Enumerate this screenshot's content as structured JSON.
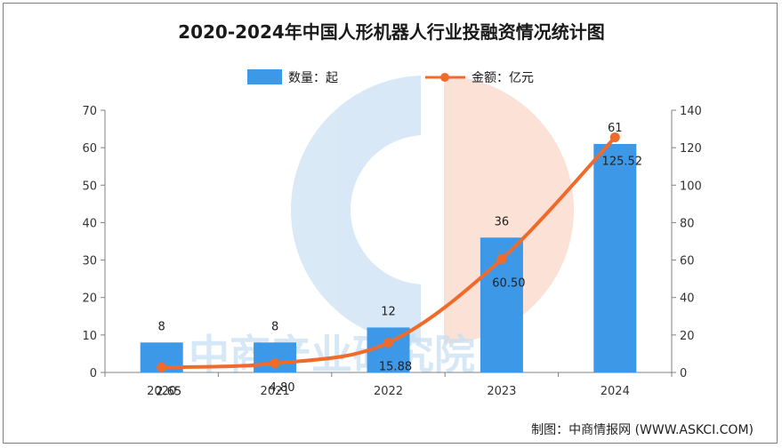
{
  "title": "2020-2024年中国人形机器人行业投融资情况统计图",
  "source": "制图：中商情报网 (WWW.ASKCI.COM)",
  "watermark": "中商产业研究院",
  "colors": {
    "bar": "#3d98e8",
    "line": "#f06b2b"
  },
  "chart_data": {
    "type": "bar",
    "title": "2020-2024年中国人形机器人行业投融资情况统计图",
    "categories": [
      "2020",
      "2021",
      "2022",
      "2023",
      "2024"
    ],
    "series": [
      {
        "name": "数量：起",
        "type": "bar",
        "axis": "left",
        "values": [
          8,
          8,
          12,
          36,
          61
        ],
        "labels": [
          "8",
          "8",
          "12",
          "36",
          "61"
        ]
      },
      {
        "name": "金额：亿元",
        "type": "line",
        "axis": "right",
        "values": [
          2.65,
          4.8,
          15.88,
          60.5,
          125.52
        ],
        "labels": [
          "2.65",
          "4.80",
          "15.88",
          "60.50",
          "125.52"
        ]
      }
    ],
    "y_left": {
      "min": 0,
      "max": 70,
      "ticks": [
        "0",
        "10",
        "20",
        "30",
        "40",
        "50",
        "60",
        "70"
      ]
    },
    "y_right": {
      "min": 0,
      "max": 140,
      "ticks": [
        "0",
        "20",
        "40",
        "60",
        "80",
        "100",
        "120",
        "140"
      ]
    },
    "grid": false,
    "legend": "top"
  }
}
